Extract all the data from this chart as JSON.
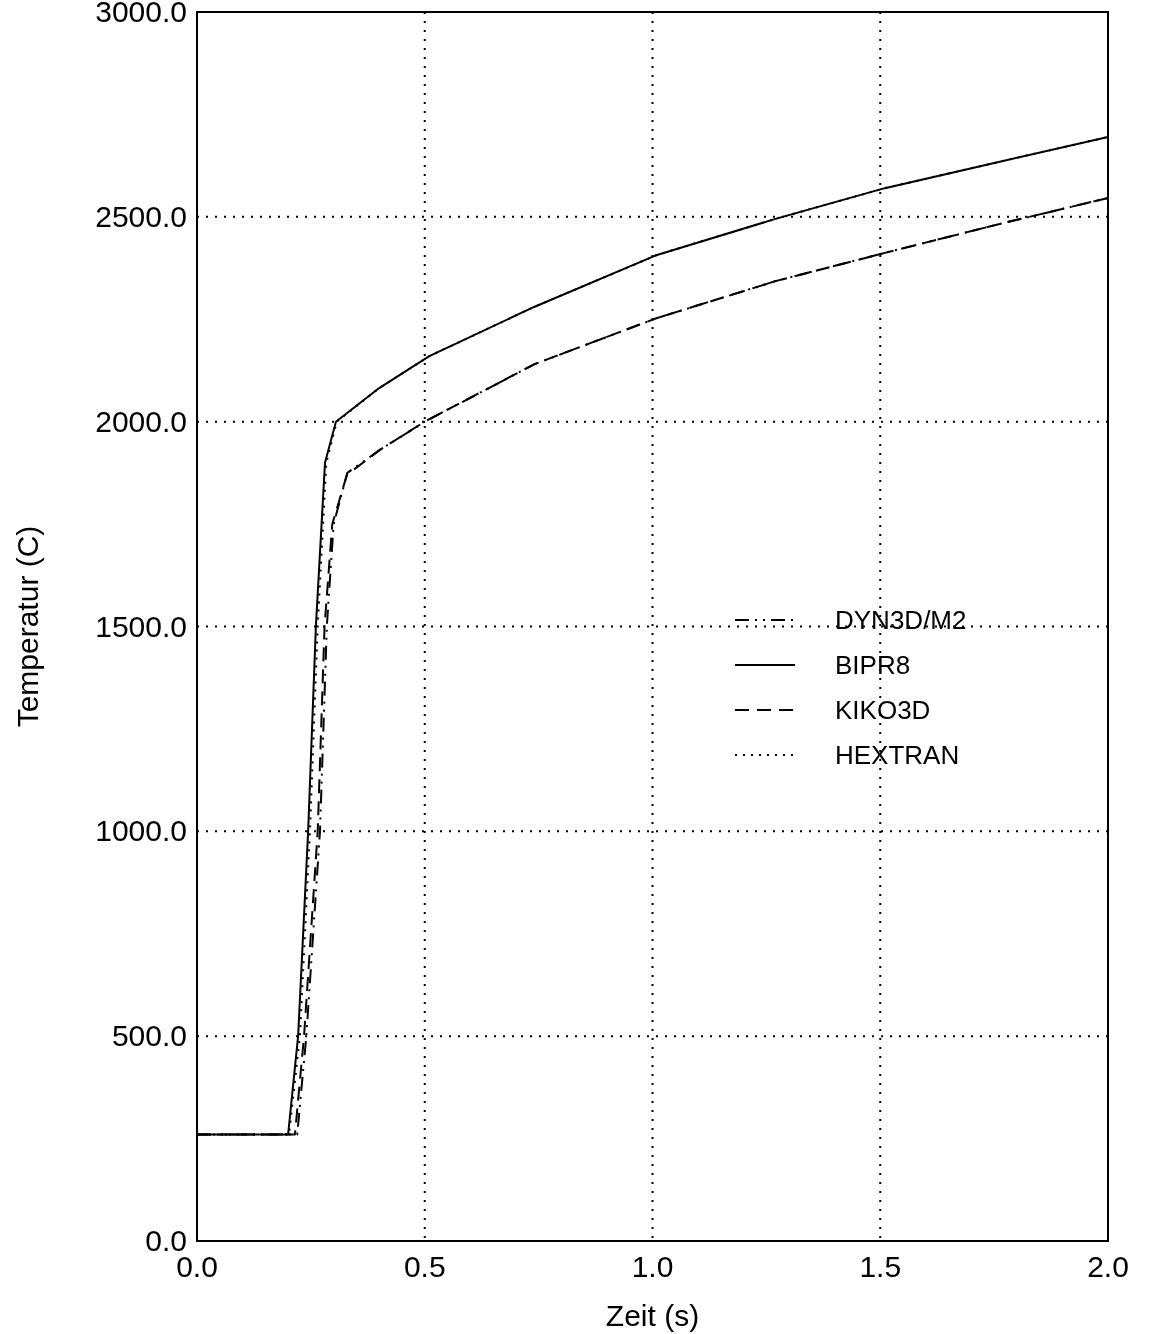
{
  "chart_data": {
    "type": "line",
    "xlabel": "Zeit (s)",
    "ylabel": "Temperatur (C)",
    "xlim": [
      0,
      2
    ],
    "ylim": [
      0,
      3000
    ],
    "xticks": [
      {
        "value": 0,
        "label": "0.0"
      },
      {
        "value": 0.5,
        "label": "0.5"
      },
      {
        "value": 1,
        "label": "1.0"
      },
      {
        "value": 1.5,
        "label": "1.5"
      },
      {
        "value": 2,
        "label": "2.0"
      }
    ],
    "yticks": [
      {
        "value": 0,
        "label": "0.0"
      },
      {
        "value": 500,
        "label": "500.0"
      },
      {
        "value": 1000,
        "label": "1000.0"
      },
      {
        "value": 1500,
        "label": "1500.0"
      },
      {
        "value": 2000,
        "label": "2000.0"
      },
      {
        "value": 2500,
        "label": "2500.0"
      },
      {
        "value": 3000,
        "label": "3000.0"
      }
    ],
    "grid": true,
    "legend": "right",
    "series": [
      {
        "name": "DYN3D/M2",
        "color": "#000000",
        "line_style": "dashdot",
        "x": [
          0,
          0.22,
          0.24,
          0.27,
          0.285,
          0.3,
          0.33,
          0.4,
          0.5,
          0.74,
          1.01,
          1.27,
          1.51,
          1.76,
          2.0
        ],
        "values": [
          260,
          260,
          500,
          1000,
          1500,
          1750,
          1875,
          1930,
          2000,
          2140,
          2253,
          2343,
          2412,
          2482,
          2546
        ]
      },
      {
        "name": "BIPR8",
        "color": "#000000",
        "line_style": "solid",
        "x": [
          0,
          0.2,
          0.222,
          0.244,
          0.261,
          0.281,
          0.305,
          0.4,
          0.51,
          0.74,
          1.01,
          1.27,
          1.51,
          1.76,
          2.0
        ],
        "values": [
          260,
          260,
          500,
          1000,
          1500,
          1900,
          2000,
          2082,
          2160,
          2280,
          2407,
          2495,
          2570,
          2634,
          2695
        ]
      },
      {
        "name": "KIKO3D",
        "color": "#000000",
        "line_style": "dashed",
        "x": [
          0,
          0.215,
          0.235,
          0.265,
          0.28,
          0.297,
          0.329,
          0.4,
          0.5,
          0.74,
          1.01,
          1.27,
          1.51,
          1.76,
          2.0
        ],
        "values": [
          260,
          260,
          500,
          1000,
          1500,
          1750,
          1870,
          1930,
          2000,
          2140,
          2253,
          2343,
          2412,
          2482,
          2546
        ]
      },
      {
        "name": "HEXTRAN",
        "color": "#000000",
        "line_style": "dotted",
        "x": [
          0,
          0.202,
          0.226,
          0.248,
          0.265,
          0.284,
          0.307,
          0.4,
          0.51,
          0.74,
          1.01,
          1.27,
          1.51,
          1.76,
          2.0
        ],
        "values": [
          260,
          260,
          500,
          1000,
          1500,
          1900,
          2000,
          2082,
          2160,
          2280,
          2407,
          2495,
          2570,
          2634,
          2695
        ]
      }
    ]
  }
}
